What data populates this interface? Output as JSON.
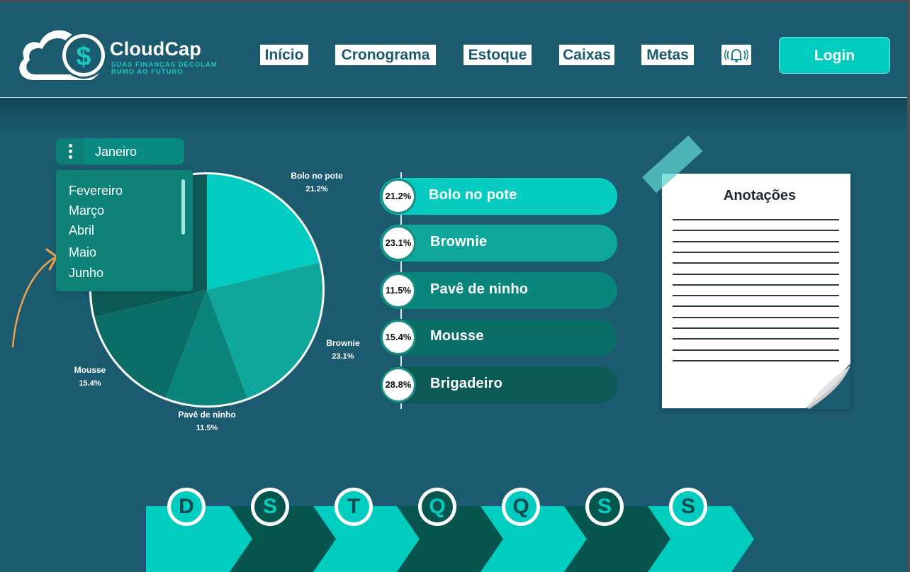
{
  "brand": {
    "name": "CloudCap",
    "tagline_line1": "SUAS FINANÇAS DECOLAM",
    "tagline_line2": "RUMO AO FUTURO",
    "logo_symbol": "$"
  },
  "nav": {
    "items": [
      {
        "label": "Início"
      },
      {
        "label": "Cronograma"
      },
      {
        "label": "Estoque"
      },
      {
        "label": "Caixas"
      },
      {
        "label": "Metas"
      }
    ],
    "bell_icon": "bell-ringing-icon",
    "login_label": "Login"
  },
  "month_select": {
    "current": "Janeiro",
    "options": [
      "Fevereiro",
      "Março",
      "Abril",
      "Maio",
      "Junho"
    ]
  },
  "colors": {
    "bg": "#1b5a6f",
    "accent": "#00cdc0",
    "pie": [
      "#02ccc1",
      "#0fa79b",
      "#0a857b",
      "#0b6e66",
      "#0b5a55"
    ],
    "legend": [
      "#05cbc0",
      "#0fa79b",
      "#0a857b",
      "#0b6e66",
      "#0b5a55"
    ],
    "week": [
      "#00cdc0",
      "#06564f"
    ]
  },
  "chart_data": {
    "type": "pie",
    "title": "",
    "slices": [
      {
        "label": "Bolo no pote",
        "value": 21.2,
        "pct_label": "21.2%"
      },
      {
        "label": "Brownie",
        "value": 23.1,
        "pct_label": "23.1%"
      },
      {
        "label": "Pavê de ninho",
        "value": 11.5,
        "pct_label": "11.5%"
      },
      {
        "label": "Mousse",
        "value": 15.4,
        "pct_label": "15.4%"
      },
      {
        "label": "Brigadeiro",
        "value": 28.8,
        "pct_label": "28.8%"
      }
    ]
  },
  "legend": [
    {
      "pct": "21.2%",
      "name": "Bolo no pote"
    },
    {
      "pct": "23.1%",
      "name": "Brownie"
    },
    {
      "pct": "11.5%",
      "name": "Pavê de ninho"
    },
    {
      "pct": "15.4%",
      "name": "Mousse"
    },
    {
      "pct": "28.8%",
      "name": "Brigadeiro"
    }
  ],
  "notes": {
    "title": "Anotações",
    "line_count": 14
  },
  "week_days": [
    "D",
    "S",
    "T",
    "Q",
    "Q",
    "S",
    "S"
  ]
}
